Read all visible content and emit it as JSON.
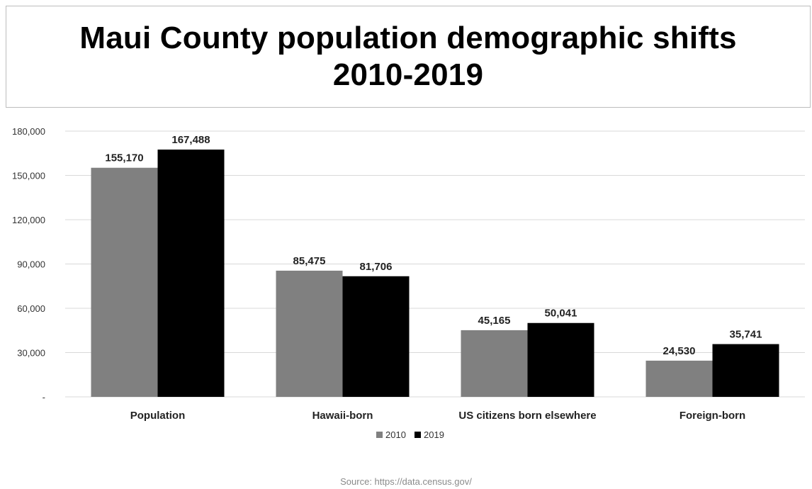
{
  "title_lines": [
    "Maui County population demographic shifts",
    "2010-2019"
  ],
  "source": "Source: https://data.census.gov/",
  "colors": {
    "s2010": "#808080",
    "s2019": "#000000",
    "grid": "#d9d9d9"
  },
  "chart_data": {
    "type": "bar",
    "title": "Maui County population demographic shifts 2010-2019",
    "categories": [
      "Population",
      "Hawaii-born",
      "US citizens born elsewhere",
      "Foreign-born"
    ],
    "series": [
      {
        "name": "2010",
        "values": [
          155170,
          85475,
          45165,
          24530
        ],
        "labels": [
          "155,170",
          "85,475",
          "45,165",
          "24,530"
        ]
      },
      {
        "name": "2019",
        "values": [
          167488,
          81706,
          50041,
          35741
        ],
        "labels": [
          "167,488",
          "81,706",
          "50,041",
          "35,741"
        ]
      }
    ],
    "ylim": [
      0,
      180000
    ],
    "yticks": [
      0,
      30000,
      60000,
      90000,
      120000,
      150000,
      180000
    ],
    "ytick_labels": [
      "-",
      "30,000",
      "60,000",
      "90,000",
      "120,000",
      "150,000",
      "180,000"
    ],
    "grid": true,
    "legend_position": "bottom"
  }
}
